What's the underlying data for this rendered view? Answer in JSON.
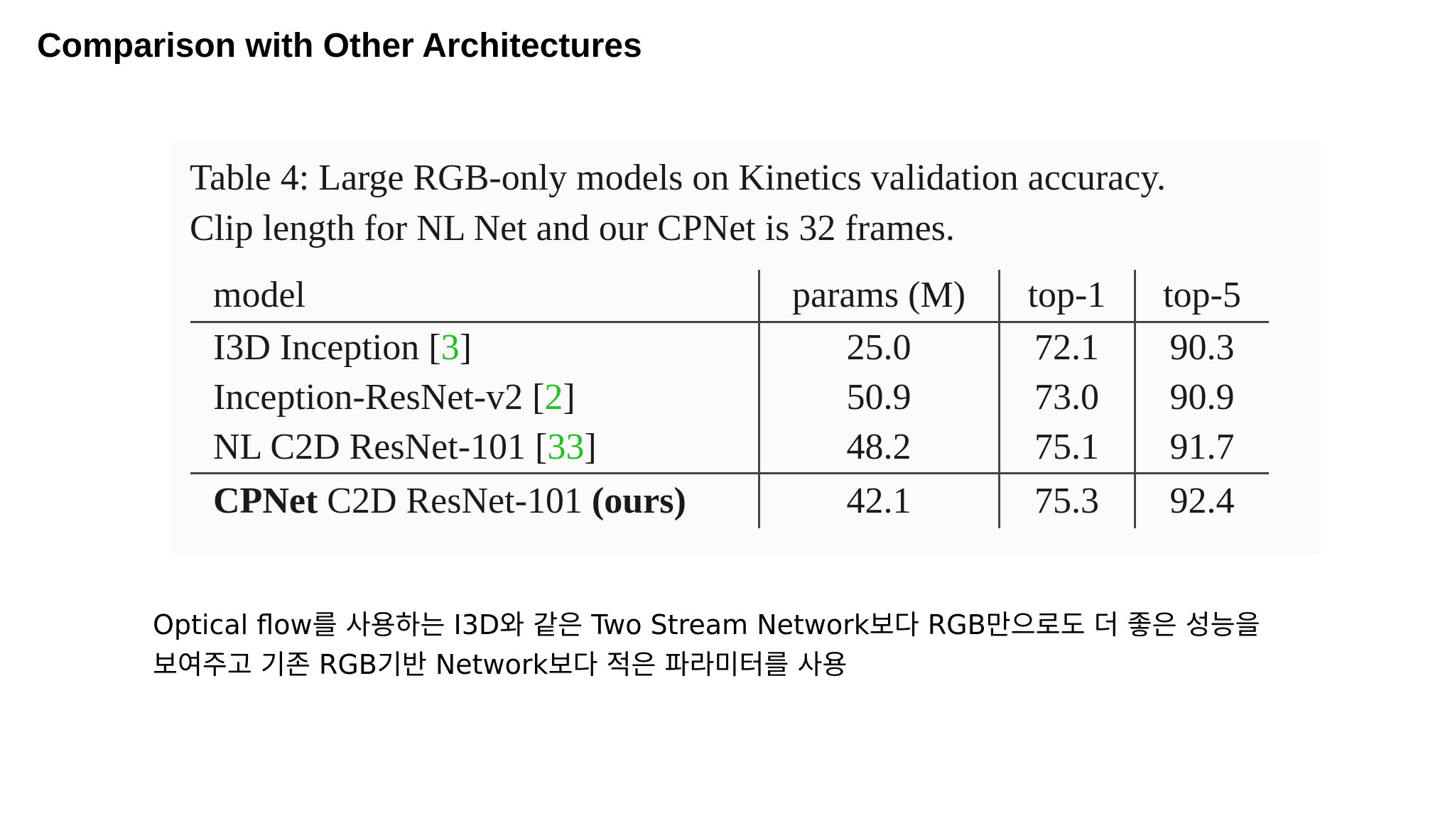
{
  "slide": {
    "title": "Comparison with Other Architectures"
  },
  "figure": {
    "caption_line1": "Table 4: Large RGB-only models on Kinetics validation accuracy.",
    "caption_line2": "Clip length for NL Net and our CPNet is 32 frames.",
    "table": {
      "headers": {
        "model": "model",
        "params": "params (M)",
        "top1": "top-1",
        "top5": "top-5"
      },
      "rows": [
        {
          "name": "I3D Inception",
          "ref": "3",
          "params": "25.0",
          "top1": "72.1",
          "top5": "90.3"
        },
        {
          "name": "Inception-ResNet-v2",
          "ref": "2",
          "params": "50.9",
          "top1": "73.0",
          "top5": "90.9"
        },
        {
          "name": "NL C2D ResNet-101",
          "ref": "33",
          "params": "48.2",
          "top1": "75.1",
          "top5": "91.7"
        }
      ],
      "ours": {
        "name_bold": "CPNet",
        "name_rest": "C2D ResNet-101",
        "suffix": "(ours)",
        "params": "42.1",
        "top1": "75.3",
        "top5": "92.4"
      }
    }
  },
  "note": {
    "line1": "Optical flow를 사용하는 I3D와 같은 Two Stream Network보다 RGB만으로도 더 좋은 성능을",
    "line2": "보여주고 기존 RGB기반 Network보다 적은 파라미터를 사용"
  },
  "colors": {
    "citation": "#22c022",
    "rule": "#444444"
  }
}
